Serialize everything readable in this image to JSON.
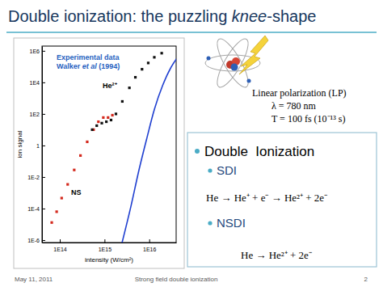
{
  "slide": {
    "title": [
      {
        "text": "Double ionization: the puzzling ",
        "italic": false
      },
      {
        "text": "knee",
        "italic": true
      },
      {
        "text": "-shape",
        "italic": false
      }
    ],
    "laser": [
      "Linear polarization (LP)",
      "λ = 780 nm",
      "T = 100 fs (10⁻¹³ s)"
    ],
    "box": {
      "heading": "Double  Ionization",
      "items": [
        {
          "label": "SDI",
          "equation": "He → He⁺ + e⁻ → He²⁺ + 2e⁻"
        },
        {
          "label": "NSDI",
          "equation": "He → He²⁺ + 2e⁻"
        }
      ]
    },
    "footer": {
      "date": "May 11, 2011",
      "title": "Strong field double ionization",
      "page": "2"
    }
  },
  "chart_data": {
    "type": "scatter",
    "log": true,
    "x_label": "intensity (W/cm²)",
    "y_label": "ion signal",
    "source_note": [
      [
        {
          "text": "Experimental data",
          "italic": false
        }
      ],
      [
        {
          "text": "Walker ",
          "italic": false
        },
        {
          "text": "et al",
          "italic": true
        },
        {
          "text": " (1994)",
          "italic": false
        }
      ]
    ],
    "annotations": [
      "He²⁺",
      "NS"
    ],
    "xlim": [
      40000000000000.0,
      4e+16
    ],
    "ylim": [
      7e-07,
      2000000.0
    ],
    "xticks": [
      {
        "value": 100000000000000.0,
        "label": "1E14"
      },
      {
        "value": 1000000000000000.0,
        "label": "1E15"
      },
      {
        "value": 1e+16,
        "label": "1E16"
      }
    ],
    "yticks": [
      {
        "value": 1e-06,
        "label": "1E-6"
      },
      {
        "value": 0.0001,
        "label": "1E-4"
      },
      {
        "value": 0.01,
        "label": "1E-2"
      },
      1,
      {
        "value": 100,
        "label": "1E2"
      },
      {
        "value": 10000,
        "label": "1E4"
      },
      {
        "value": 1000000,
        "label": "1E6"
      }
    ],
    "series": [
      {
        "type": "scatter",
        "color": "#d42a1e",
        "marker": "square",
        "x": [
          66000000000000.0,
          85000000000000.0,
          110000000000000.0,
          150000000000000.0,
          210000000000000.0,
          290000000000000.0,
          410000000000000.0,
          570000000000000.0,
          730000000000000.0,
          940000000000000.0,
          1200000000000000.0,
          1500000000000000.0
        ],
        "values": [
          1.3e-05,
          6.3e-05,
          0.00046,
          0.0034,
          0.028,
          0.23,
          1.7,
          10,
          32,
          59,
          59,
          83
        ]
      },
      {
        "type": "scatter",
        "color": "#111111",
        "marker": "square",
        "x": [
          530000000000000.0,
          670000000000000.0,
          870000000000000.0,
          1100000000000000.0,
          1400000000000000.0,
          1800000000000000.0,
          2500000000000000.0,
          3600000000000000.0,
          4900000000000000.0,
          6900000000000000.0,
          9500000000000000.0,
          1.3e+16,
          1.9e+16
        ],
        "values": [
          10,
          18,
          26,
          32,
          41,
          100,
          620,
          4500,
          21000,
          68000,
          170000,
          390000,
          710000
        ]
      },
      {
        "type": "line",
        "color": "#1f3fd0",
        "line_style": "solid",
        "x": [
          2400000000000000.0,
          3900000000000000.0,
          5900000000000000.0,
          8900000000000000.0,
          1.3e+16,
          2e+16,
          3.1e+16,
          4.3e+16
        ],
        "values": [
          5e-07,
          0.00014,
          0.028,
          3.1,
          190,
          6500,
          95000,
          390000
        ]
      }
    ]
  }
}
